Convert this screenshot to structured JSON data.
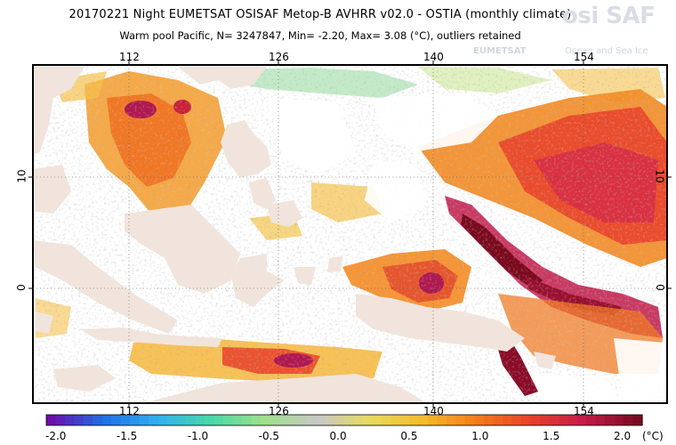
{
  "header": {
    "line1": "20170221 Night  EUMETSAT OSISAF  Metop-B AVHRR v02.0 - OSTIA (monthly climate)",
    "line2": "Warm pool Pacific, N= 3247847, Min= -2.20, Max= 3.08 (°C), outliers retained"
  },
  "logo": {
    "main": "osi SAF",
    "sub1": "EUMETSAT",
    "sub2": "Ocean and Sea Ice"
  },
  "axes": {
    "lon_ticks": [
      "112",
      "126",
      "140",
      "154"
    ],
    "lat_ticks": [
      "10",
      "0"
    ]
  },
  "colorbar": {
    "labels": [
      "-2.0",
      "-1.5",
      "-1.0",
      "-0.5",
      "0.0",
      "0.5",
      "1.0",
      "1.5",
      "2.0"
    ],
    "unit": "(°C)",
    "min": -2.0,
    "max": 2.0
  },
  "colors": {
    "land": "#f0e4dc",
    "colorbar": [
      "#6a0dad",
      "#1e6fe8",
      "#2fb0f0",
      "#48d8a8",
      "#9fe08a",
      "#c8c8c8",
      "#e7dc5a",
      "#f3ba2a",
      "#f57a1a",
      "#e8402a",
      "#c61a4a",
      "#7a0a1e"
    ]
  }
}
